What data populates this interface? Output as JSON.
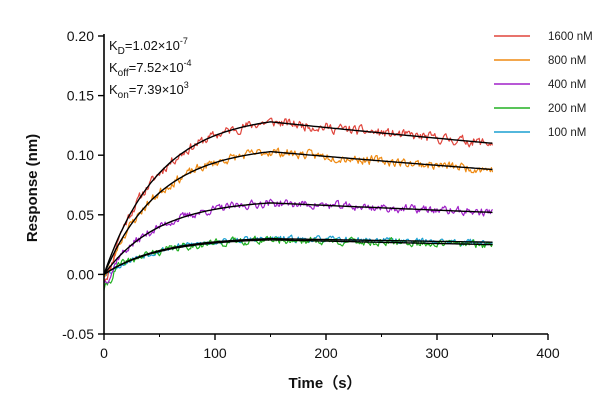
{
  "chart_data": {
    "type": "line",
    "title": "",
    "xlabel": "Time（s）",
    "ylabel": "Response (nm)",
    "xlim": [
      0,
      400
    ],
    "ylim": [
      -0.05,
      0.2
    ],
    "xticks": [
      "0",
      "100",
      "200",
      "300",
      "400"
    ],
    "yticks": [
      "-0.05",
      "0.00",
      "0.05",
      "0.10",
      "0.15",
      "0.20"
    ],
    "grid": false,
    "legend_position": "top-right",
    "association_end_s": 150,
    "run_end_s": 350,
    "kinetics": {
      "kd": {
        "main": "K",
        "sub": "D",
        "value": "=1.02×10",
        "exp": "-7"
      },
      "koff": {
        "main": "K",
        "sub": "off",
        "value": "=7.52×10",
        "exp": "-4"
      },
      "kon": {
        "main": "K",
        "sub": "on",
        "value": "=7.39×10",
        "exp": "3"
      }
    },
    "series": [
      {
        "name": "1600 nM",
        "color": "#e0453c",
        "fit_peak": 0.128,
        "fit_end": 0.11,
        "noise": 0.0065,
        "seed": 11,
        "start": -0.003
      },
      {
        "name": "800 nM",
        "color": "#ef8a12",
        "fit_peak": 0.103,
        "fit_end": 0.088,
        "noise": 0.006,
        "seed": 23,
        "start": 0.0
      },
      {
        "name": "400 nM",
        "color": "#a020c8",
        "fit_peak": 0.06,
        "fit_end": 0.052,
        "noise": 0.0055,
        "seed": 37,
        "start": -0.006
      },
      {
        "name": "200 nM",
        "color": "#22b022",
        "fit_peak": 0.029,
        "fit_end": 0.025,
        "noise": 0.005,
        "seed": 41,
        "start": -0.012
      },
      {
        "name": "100 nM",
        "color": "#1a9fd0",
        "fit_peak": 0.03,
        "fit_end": 0.027,
        "noise": 0.004,
        "seed": 53,
        "start": 0.002
      }
    ]
  }
}
